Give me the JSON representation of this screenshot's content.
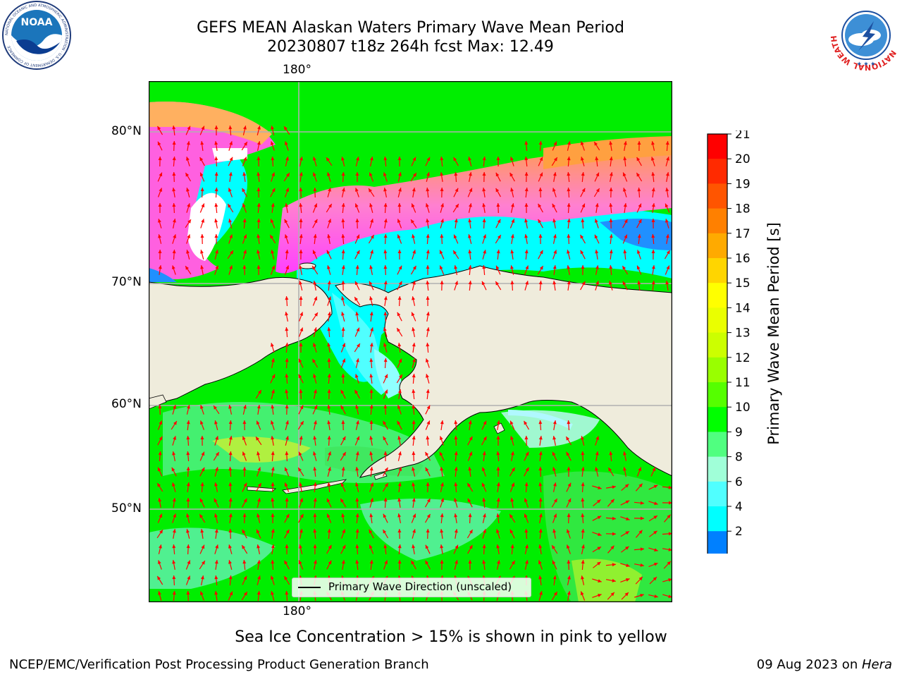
{
  "title": {
    "line1": "GEFS MEAN Alaskan Waters Primary Wave Mean Period",
    "line2": "20230807 t18z 264h fcst   Max: 12.49"
  },
  "logos": {
    "left": {
      "name": "NOAA",
      "ring_text": "NATIONAL OCEANIC AND ATMOSPHERIC ADMINISTRATION · U.S. DEPARTMENT OF COMMERCE"
    },
    "right": {
      "ring_text": "NATIONAL WEATHER SERVICE"
    }
  },
  "map": {
    "lon_label_top": "180°",
    "lon_label_bottom": "180°",
    "lat_labels": [
      "80°N",
      "70°N",
      "60°N",
      "50°N"
    ],
    "legend_text": "Primary Wave Direction (unscaled)",
    "colors": {
      "land": "#efecdc",
      "open_water": "#00ff00",
      "arrows": "#ff0000",
      "gridlines": "#b0b0b0"
    }
  },
  "colorbar": {
    "label": "Primary Wave Mean Period [s]",
    "ticks": [
      "21",
      "20",
      "19",
      "18",
      "17",
      "16",
      "15",
      "14",
      "13",
      "12",
      "11",
      "10",
      "9",
      "8",
      "6",
      "4",
      "2"
    ],
    "colors": [
      "#ff0000",
      "#ff2a00",
      "#ff5500",
      "#ff8000",
      "#ffaa00",
      "#ffd500",
      "#ffff00",
      "#eaff00",
      "#ccff00",
      "#99ff00",
      "#55ff00",
      "#00ff00",
      "#50ff80",
      "#a0ffd8",
      "#50ffff",
      "#00ffff",
      "#0080ff"
    ],
    "extend_color": "#0000ff"
  },
  "ice_note": "Sea Ice Concentration > 15% is shown in pink to yellow",
  "footer": {
    "left": "NCEP/EMC/Verification Post Processing Product Generation Branch",
    "right_prefix": "09 Aug 2023 on ",
    "right_machine": "Hera"
  }
}
